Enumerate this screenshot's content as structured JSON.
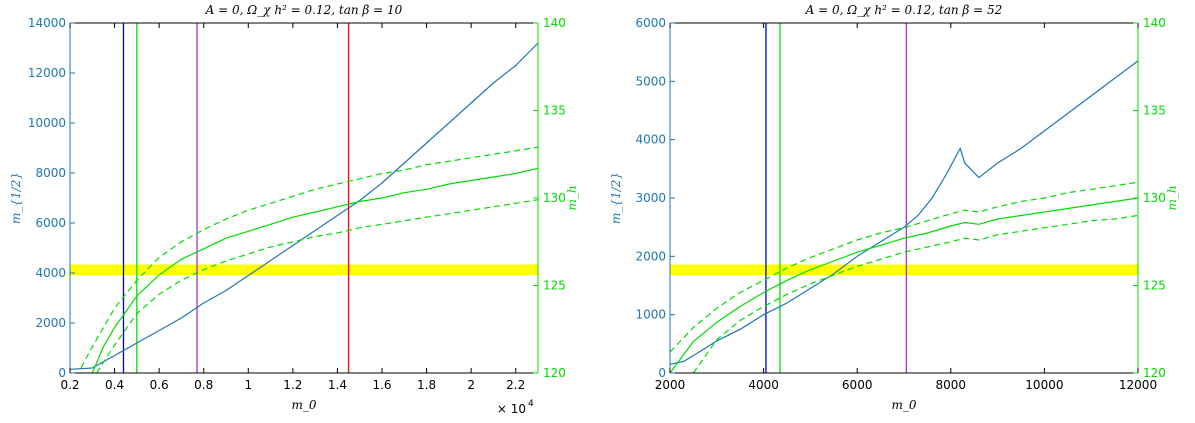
{
  "chart_data": [
    {
      "type": "line",
      "title": "A = 0, Ω_χ h² = 0.12, tan β = 10",
      "xlabel": "m_0",
      "ylabel_left": "m_{1/2}",
      "ylabel_right": "m_h",
      "x_multiplier_label": "× 10",
      "x_multiplier_exp": "4",
      "xlim": [
        0.2,
        2.3
      ],
      "ylim_left": [
        0,
        14000
      ],
      "ylim_right": [
        120,
        140
      ],
      "x_ticks": [
        0.2,
        0.4,
        0.6,
        0.8,
        1,
        1.2,
        1.4,
        1.6,
        1.8,
        2,
        2.2
      ],
      "y_left_ticks": [
        0,
        2000,
        4000,
        6000,
        8000,
        10000,
        12000,
        14000
      ],
      "y_right_ticks": [
        120,
        125,
        130,
        135,
        140
      ],
      "colors": {
        "m_half": "#1f77b4",
        "m_h": "#00dd00",
        "band": "#ffff00"
      },
      "band_right_axis": [
        125.6,
        126.2
      ],
      "vertical_lines": [
        {
          "x": 0.44,
          "color": "#0000cc"
        },
        {
          "x": 0.5,
          "color": "#00dd00"
        },
        {
          "x": 0.77,
          "color": "#aa33dd"
        },
        {
          "x": 1.45,
          "color": "#ff0000"
        }
      ],
      "series": [
        {
          "axis": "left",
          "style": "solid",
          "color": "#1f77b4",
          "x": [
            0.2,
            0.3,
            0.4,
            0.5,
            0.6,
            0.7,
            0.8,
            0.9,
            1.0,
            1.1,
            1.2,
            1.3,
            1.4,
            1.5,
            1.6,
            1.7,
            1.8,
            1.9,
            2.0,
            2.1,
            2.2,
            2.3
          ],
          "y": [
            150,
            200,
            700,
            1200,
            1700,
            2200,
            2800,
            3300,
            3900,
            4500,
            5100,
            5700,
            6300,
            6900,
            7600,
            8400,
            9200,
            10000,
            10800,
            11600,
            12300,
            13200
          ]
        },
        {
          "axis": "right",
          "style": "solid",
          "color": "#00dd00",
          "x": [
            0.3,
            0.35,
            0.4,
            0.5,
            0.6,
            0.7,
            0.8,
            0.9,
            1.0,
            1.1,
            1.2,
            1.3,
            1.4,
            1.5,
            1.6,
            1.7,
            1.8,
            1.9,
            2.0,
            2.1,
            2.2,
            2.3
          ],
          "y": [
            120,
            121.5,
            122.6,
            124.4,
            125.6,
            126.5,
            127.1,
            127.7,
            128.1,
            128.5,
            128.9,
            129.2,
            129.5,
            129.8,
            130.0,
            130.3,
            130.5,
            130.8,
            131.0,
            131.2,
            131.4,
            131.7
          ]
        },
        {
          "axis": "right",
          "style": "dashed",
          "color": "#00dd00",
          "x": [
            0.25,
            0.3,
            0.4,
            0.5,
            0.6,
            0.7,
            0.8,
            0.9,
            1.0,
            1.1,
            1.2,
            1.3,
            1.4,
            1.5,
            1.6,
            1.7,
            1.8,
            1.9,
            2.0,
            2.1,
            2.2,
            2.3
          ],
          "y": [
            120.3,
            121.5,
            123.7,
            125.3,
            126.6,
            127.5,
            128.2,
            128.8,
            129.3,
            129.7,
            130.1,
            130.5,
            130.8,
            131.1,
            131.4,
            131.6,
            131.9,
            132.1,
            132.3,
            132.5,
            132.7,
            132.9
          ]
        },
        {
          "axis": "right",
          "style": "dashed",
          "color": "#00dd00",
          "x": [
            0.32,
            0.4,
            0.5,
            0.6,
            0.7,
            0.8,
            0.9,
            1.0,
            1.1,
            1.2,
            1.3,
            1.4,
            1.5,
            1.6,
            1.7,
            1.8,
            1.9,
            2.0,
            2.1,
            2.2,
            2.3
          ],
          "y": [
            120,
            121.6,
            123.4,
            124.5,
            125.3,
            125.9,
            126.4,
            126.8,
            127.2,
            127.5,
            127.8,
            128.0,
            128.3,
            128.5,
            128.7,
            128.9,
            129.1,
            129.3,
            129.5,
            129.7,
            129.9
          ]
        }
      ]
    },
    {
      "type": "line",
      "title": "A = 0, Ω_χ h² = 0.12, tan β = 52",
      "xlabel": "m_0",
      "ylabel_left": "m_{1/2}",
      "ylabel_right": "m_h",
      "xlim": [
        2000,
        12000
      ],
      "ylim_left": [
        0,
        6000
      ],
      "ylim_right": [
        120,
        140
      ],
      "x_ticks": [
        2000,
        4000,
        6000,
        8000,
        10000,
        12000
      ],
      "y_left_ticks": [
        0,
        1000,
        2000,
        3000,
        4000,
        5000,
        6000
      ],
      "y_right_ticks": [
        120,
        125,
        130,
        135,
        140
      ],
      "colors": {
        "m_half": "#1f77b4",
        "m_h": "#00dd00",
        "band": "#ffff00"
      },
      "band_right_axis": [
        125.6,
        126.2
      ],
      "vertical_lines": [
        {
          "x": 4050,
          "color": "#0000cc"
        },
        {
          "x": 4350,
          "color": "#00dd00"
        },
        {
          "x": 7050,
          "color": "#aa33dd"
        }
      ],
      "series": [
        {
          "axis": "left",
          "style": "solid",
          "color": "#1f77b4",
          "x": [
            2000,
            2300,
            2600,
            3000,
            3500,
            4000,
            4500,
            5000,
            5500,
            6000,
            6500,
            7000,
            7300,
            7600,
            7900,
            8200,
            8300,
            8600,
            9000,
            9500,
            10000,
            10500,
            11000,
            11500,
            12000
          ],
          "y": [
            150,
            200,
            350,
            550,
            750,
            1000,
            1200,
            1450,
            1700,
            2000,
            2250,
            2500,
            2700,
            3000,
            3400,
            3850,
            3600,
            3350,
            3600,
            3850,
            4150,
            4450,
            4750,
            5050,
            5350
          ]
        },
        {
          "axis": "right",
          "style": "solid",
          "color": "#00dd00",
          "x": [
            2000,
            2500,
            3000,
            3500,
            4000,
            4500,
            5000,
            5500,
            6000,
            6500,
            7000,
            7500,
            8000,
            8300,
            8600,
            9000,
            9500,
            10000,
            10500,
            11000,
            11500,
            12000
          ],
          "y": [
            120,
            121.8,
            122.9,
            123.8,
            124.6,
            125.3,
            125.9,
            126.4,
            126.9,
            127.3,
            127.7,
            128.0,
            128.4,
            128.6,
            128.5,
            128.8,
            129.0,
            129.2,
            129.4,
            129.6,
            129.8,
            130.0
          ]
        },
        {
          "axis": "right",
          "style": "dashed",
          "color": "#00dd00",
          "x": [
            2000,
            2500,
            3000,
            3500,
            4000,
            4500,
            5000,
            5500,
            6000,
            6500,
            7000,
            7500,
            8000,
            8300,
            8600,
            9000,
            9500,
            10000,
            10500,
            11000,
            11500,
            12000
          ],
          "y": [
            121.2,
            122.6,
            123.7,
            124.6,
            125.3,
            126.0,
            126.6,
            127.1,
            127.6,
            128.0,
            128.3,
            128.7,
            129.1,
            129.3,
            129.2,
            129.5,
            129.8,
            130.0,
            130.3,
            130.5,
            130.7,
            130.9
          ]
        },
        {
          "axis": "right",
          "style": "dashed",
          "color": "#00dd00",
          "x": [
            2500,
            3000,
            3500,
            4000,
            4500,
            5000,
            5500,
            6000,
            6500,
            7000,
            7500,
            8000,
            8300,
            8600,
            9000,
            9500,
            10000,
            10500,
            11000,
            11500,
            12000
          ],
          "y": [
            120,
            121.9,
            123.0,
            123.8,
            124.5,
            125.1,
            125.6,
            126.1,
            126.5,
            126.9,
            127.2,
            127.5,
            127.7,
            127.6,
            127.9,
            128.1,
            128.3,
            128.5,
            128.7,
            128.8,
            129.0
          ]
        }
      ]
    }
  ]
}
